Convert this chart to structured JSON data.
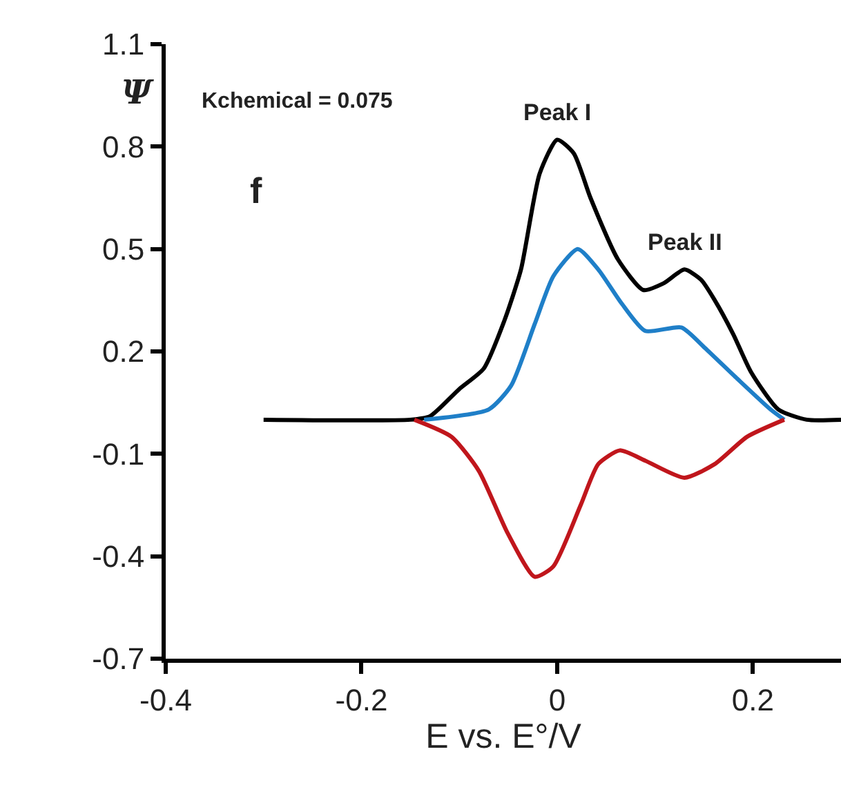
{
  "chart_data": {
    "type": "line",
    "xlabel": "E vs. E°/V",
    "ylabel": "Ψ",
    "xlim": [
      -0.4,
      0.29
    ],
    "xticks": [
      -0.4,
      -0.2,
      0,
      0.2
    ],
    "ylim": [
      -0.7,
      1.1
    ],
    "yticks": [
      -0.7,
      -0.4,
      -0.1,
      0.2,
      0.5,
      0.8,
      1.1
    ],
    "marker": "none",
    "line_style": "solid",
    "series": [
      {
        "color": "#000000",
        "x": [
          -0.3,
          -0.15,
          -0.13,
          -0.1,
          -0.075,
          -0.054,
          -0.037,
          -0.018,
          0,
          0.017,
          0.034,
          0.062,
          0.088,
          0.109,
          0.13,
          0.147,
          0.161,
          0.18,
          0.198,
          0.226,
          0.255,
          0.29
        ],
        "values": [
          0,
          0,
          0.01,
          0.09,
          0.15,
          0.29,
          0.44,
          0.72,
          0.82,
          0.78,
          0.65,
          0.47,
          0.38,
          0.4,
          0.44,
          0.41,
          0.35,
          0.25,
          0.14,
          0.03,
          0,
          0
        ]
      },
      {
        "color": "#1f7fc8",
        "x": [
          -0.136,
          -0.07,
          -0.047,
          -0.023,
          -0.004,
          0.021,
          0.042,
          0.066,
          0.09,
          0.127,
          0.151,
          0.184,
          0.218,
          0.232
        ],
        "values": [
          0,
          0.03,
          0.1,
          0.28,
          0.42,
          0.5,
          0.44,
          0.34,
          0.26,
          0.27,
          0.21,
          0.12,
          0.03,
          0
        ]
      },
      {
        "color": "#c0161c",
        "x": [
          -0.146,
          -0.108,
          -0.08,
          -0.051,
          -0.023,
          -0.004,
          0.024,
          0.042,
          0.064,
          0.09,
          0.13,
          0.161,
          0.194,
          0.232
        ],
        "values": [
          0,
          -0.05,
          -0.15,
          -0.33,
          -0.46,
          -0.43,
          -0.25,
          -0.13,
          -0.09,
          -0.12,
          -0.17,
          -0.13,
          -0.05,
          0
        ]
      }
    ],
    "annotations": [
      {
        "text": "Peak I",
        "x": 0,
        "y": 0.82
      },
      {
        "text": "Peak II",
        "x": 0.13,
        "y": 0.44
      },
      "Kchemical = 0.075",
      "f"
    ]
  }
}
